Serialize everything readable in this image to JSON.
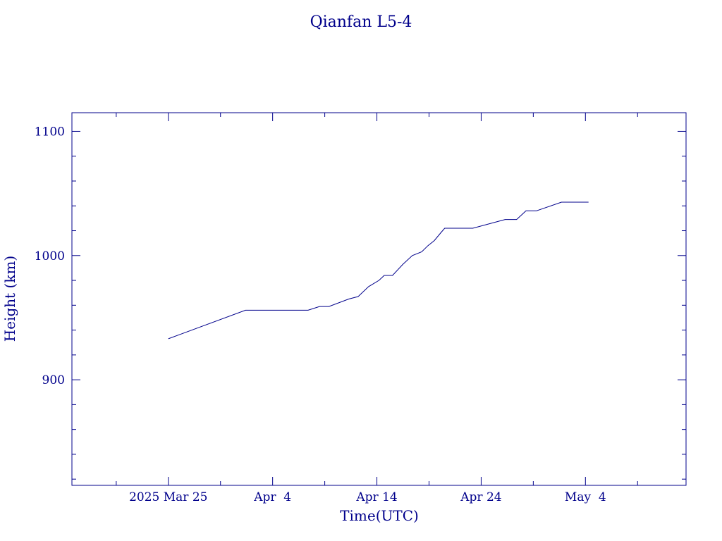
{
  "chart_data": {
    "type": "line",
    "title": "Qianfan L5-4",
    "xlabel": "Time(UTC)",
    "ylabel": "Height (km)",
    "ylim": [
      815,
      1115
    ],
    "y_ticks": [
      900,
      1000,
      1100
    ],
    "x_tick_labels": [
      "2025 Mar 25",
      "Apr  4",
      "Apr 14",
      "Apr 24",
      "May  4"
    ],
    "x_tick_days": [
      0,
      10,
      20,
      30,
      40
    ],
    "xlim_days": [
      -9.25,
      49.65
    ],
    "color": "#00008b",
    "series": [
      {
        "x_days": [
          0,
          7.4,
          13.4,
          14.5,
          15.4,
          17.3,
          18.2,
          19.2,
          20.2,
          20.7,
          21.5,
          22.5,
          23.4,
          24.3,
          24.9,
          25.5,
          26.1,
          26.5,
          29.2,
          32.3,
          33.4,
          34.3,
          35.3,
          37.7,
          40.3
        ],
        "y": [
          933,
          956,
          956,
          959,
          959,
          965,
          967,
          975,
          980,
          984,
          984,
          993,
          1000,
          1003,
          1008,
          1012,
          1018,
          1022,
          1022,
          1029,
          1029,
          1036,
          1036,
          1043,
          1043
        ]
      }
    ]
  }
}
